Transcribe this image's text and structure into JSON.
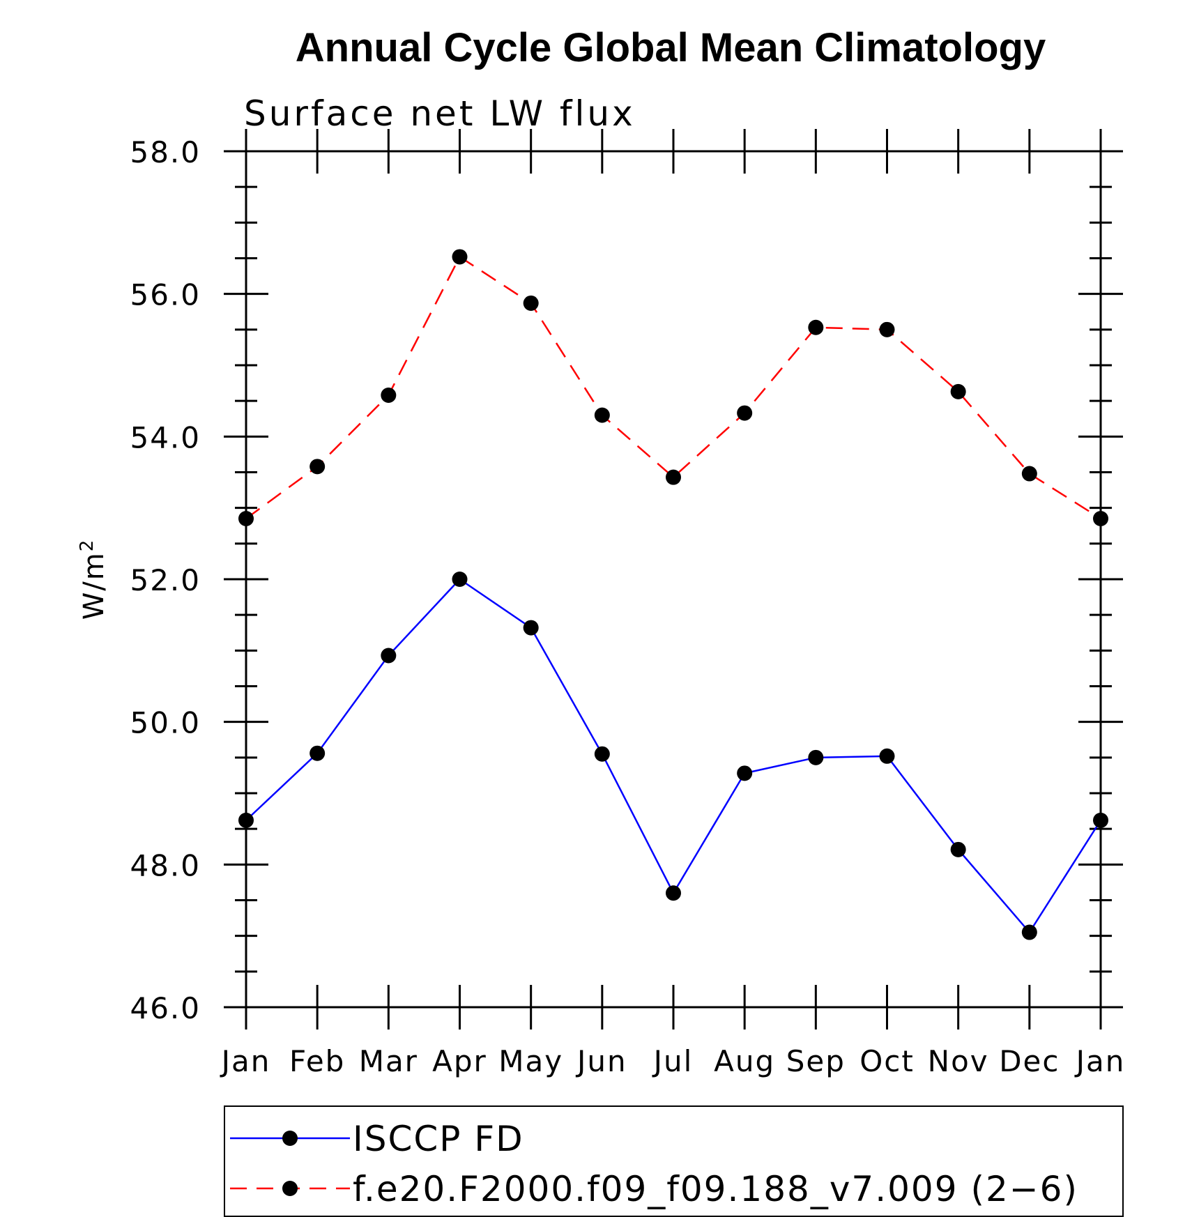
{
  "chart_data": {
    "type": "line",
    "title": "Annual Cycle Global Mean Climatology",
    "subtitle": "Surface net LW flux",
    "ylabel": "W/m",
    "ylabel_superscript": "2",
    "ylim": [
      46.0,
      58.0
    ],
    "yticks": [
      "46.0",
      "48.0",
      "50.0",
      "52.0",
      "54.0",
      "56.0",
      "58.0"
    ],
    "categories": [
      "Jan",
      "Feb",
      "Mar",
      "Apr",
      "May",
      "Jun",
      "Jul",
      "Aug",
      "Sep",
      "Oct",
      "Nov",
      "Dec",
      "Jan"
    ],
    "legend_position": "bottom",
    "grid": false,
    "series": [
      {
        "name": "ISCCP FD",
        "color": "#0000ff",
        "style": "solid",
        "marker": "circle",
        "values": [
          48.62,
          49.56,
          50.93,
          52.0,
          51.32,
          49.55,
          47.6,
          49.28,
          49.5,
          49.52,
          48.21,
          47.05,
          48.62
        ]
      },
      {
        "name": "f.e20.F2000.f09_f09.188_v7.009 (2−6)",
        "color": "#ff0000",
        "style": "dashed",
        "marker": "circle",
        "values": [
          52.85,
          53.58,
          54.58,
          56.52,
          55.87,
          54.3,
          53.43,
          54.33,
          55.53,
          55.5,
          54.63,
          53.48,
          52.85
        ]
      }
    ]
  }
}
